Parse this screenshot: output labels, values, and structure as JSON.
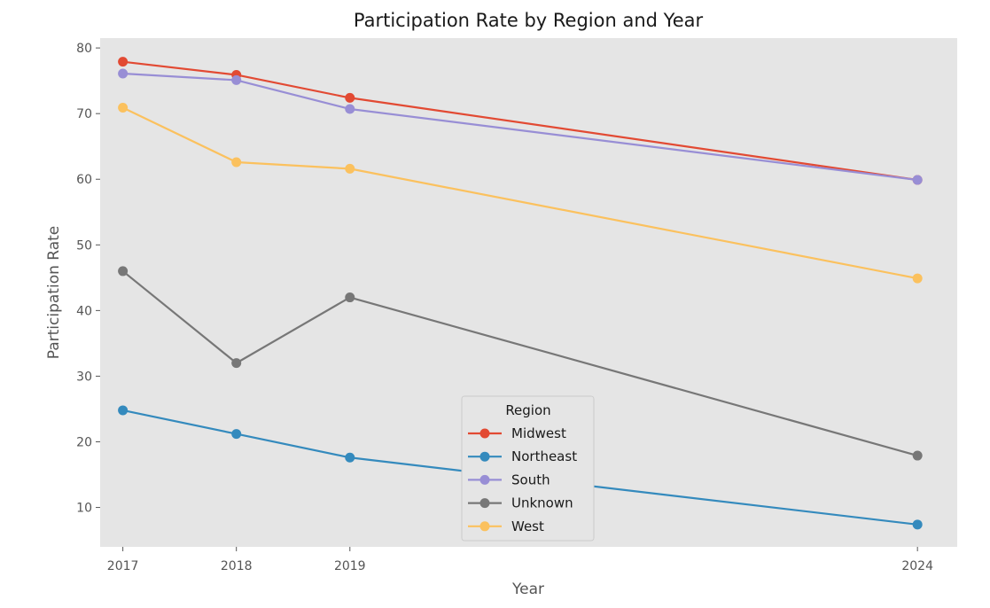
{
  "chart_data": {
    "type": "line",
    "title": "Participation Rate by Region and Year",
    "xlabel": "Year",
    "ylabel": "Participation Rate",
    "x": [
      2017,
      2018,
      2019,
      2024
    ],
    "x_tick_labels": [
      "2017",
      "2018",
      "2019",
      "2024"
    ],
    "xlim": [
      2016.8,
      2024.35
    ],
    "ylim": [
      4,
      81.5
    ],
    "y_ticks": [
      10,
      20,
      30,
      40,
      50,
      60,
      70,
      80
    ],
    "grid": false,
    "legend": {
      "title": "Region",
      "placement": "bottom-center"
    },
    "series": [
      {
        "name": "Midwest",
        "color": "#E24A33",
        "values": [
          77.9,
          75.9,
          72.4,
          59.9
        ]
      },
      {
        "name": "Northeast",
        "color": "#348ABD",
        "values": [
          24.8,
          21.2,
          17.6,
          7.4
        ]
      },
      {
        "name": "South",
        "color": "#988ED5",
        "values": [
          76.1,
          75.1,
          70.7,
          59.9
        ]
      },
      {
        "name": "Unknown",
        "color": "#777777",
        "values": [
          46.0,
          32.0,
          42.0,
          17.9
        ]
      },
      {
        "name": "West",
        "color": "#FBC15E",
        "values": [
          70.9,
          62.6,
          61.6,
          44.9
        ]
      }
    ]
  }
}
